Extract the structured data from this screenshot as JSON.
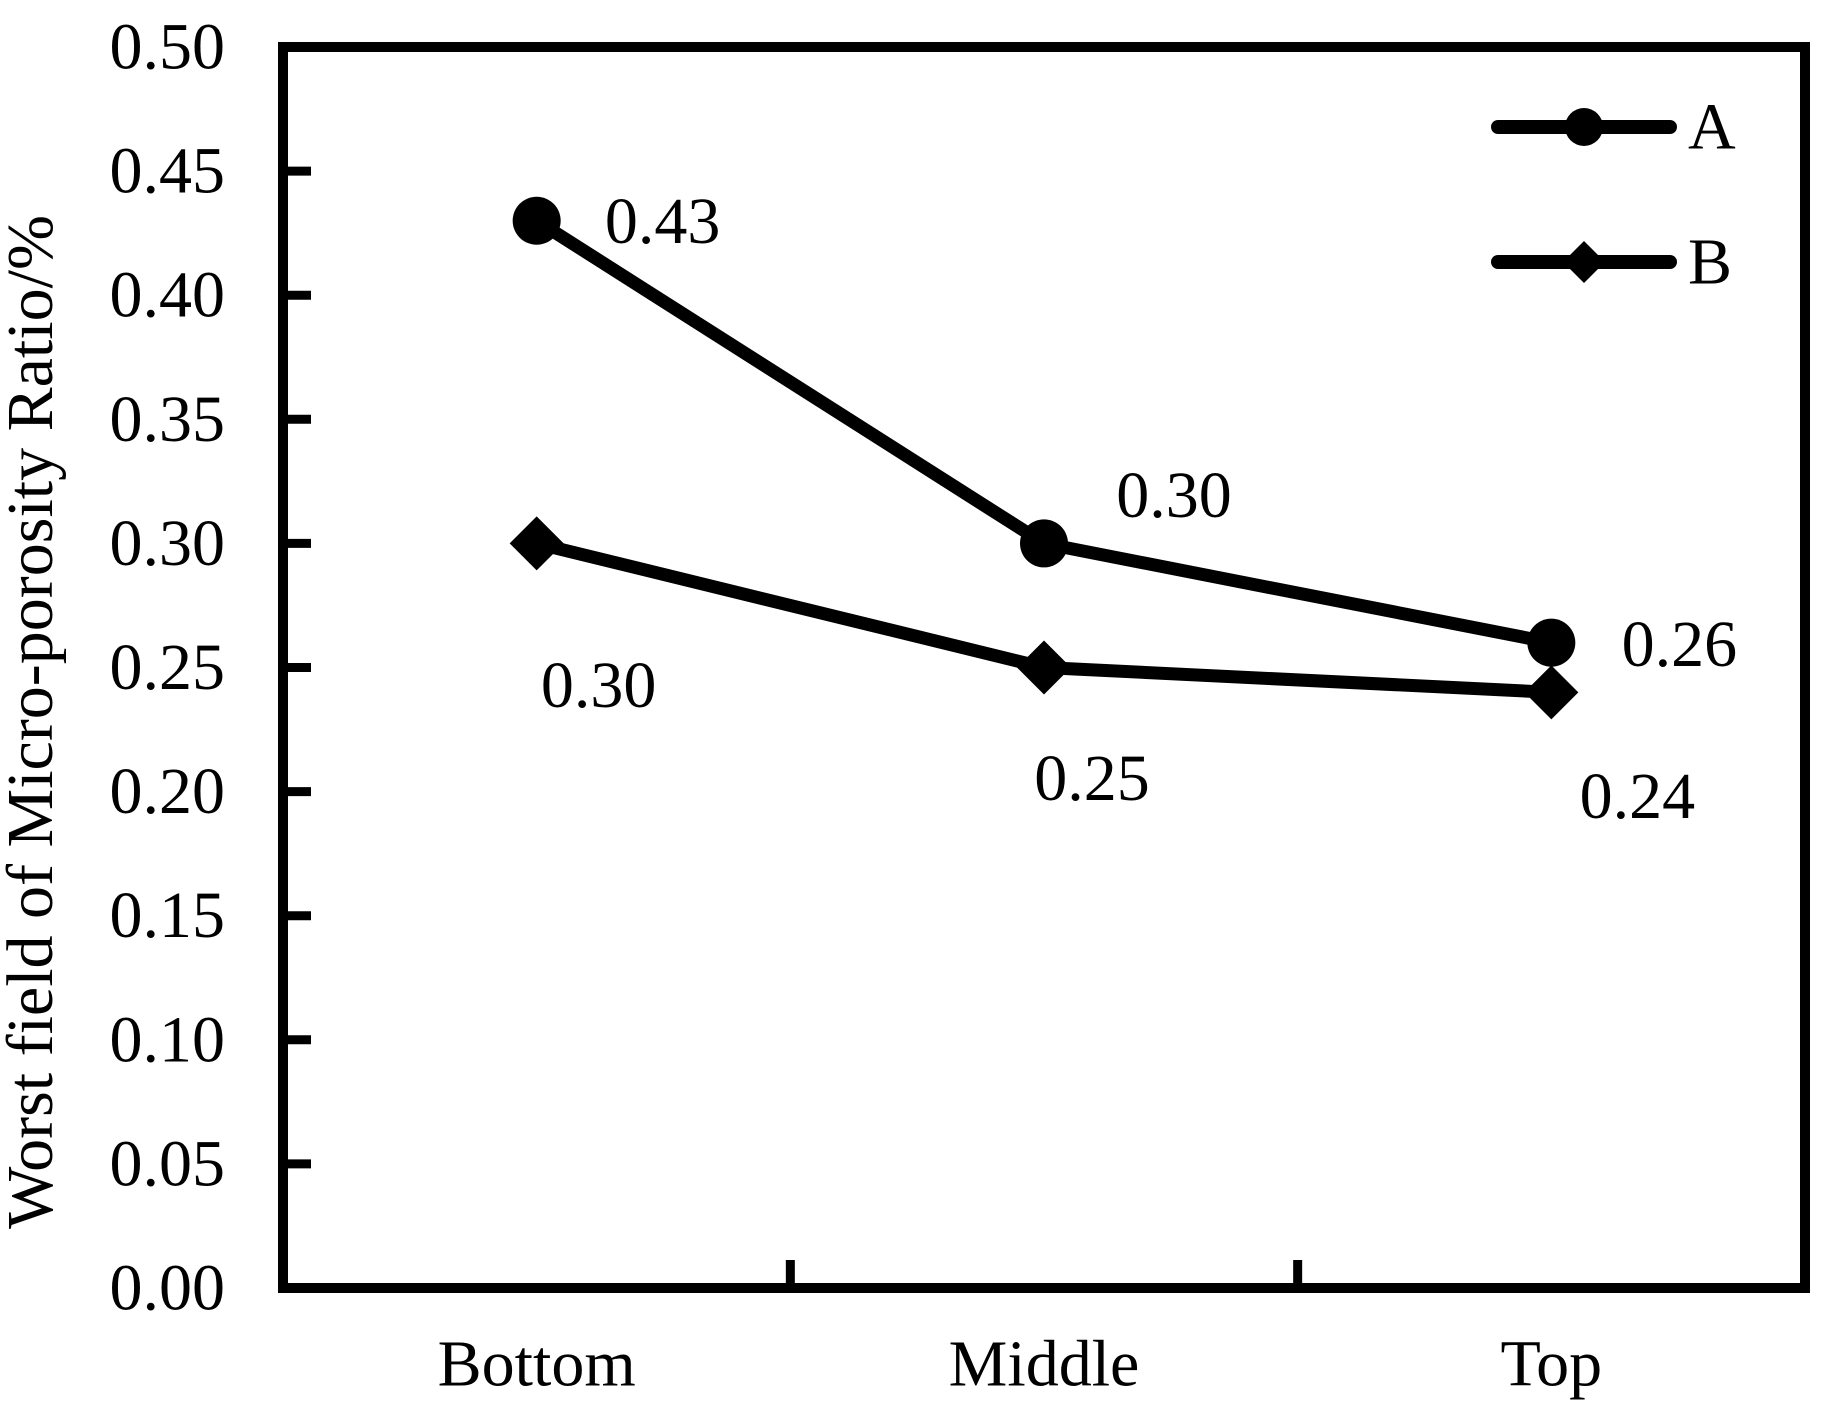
{
  "chart_data": {
    "type": "line",
    "title": "",
    "xlabel": "",
    "ylabel": "Worst field of Micro-porosity Ratio/%",
    "categories": [
      "Bottom",
      "Middle",
      "Top"
    ],
    "series": [
      {
        "name": "A",
        "marker": "circle",
        "values": [
          0.43,
          0.3,
          0.26
        ],
        "data_labels": [
          "0.43",
          "0.30",
          "0.26"
        ],
        "label_offsets": [
          [
            126,
            1
          ],
          [
            130,
            -48
          ],
          [
            128,
            2
          ]
        ]
      },
      {
        "name": "B",
        "marker": "diamond",
        "values": [
          0.3,
          0.25,
          0.24
        ],
        "data_labels": [
          "0.30",
          "0.25",
          "0.24"
        ],
        "label_offsets": [
          [
            62,
            142
          ],
          [
            48,
            111
          ],
          [
            86,
            104
          ]
        ]
      }
    ],
    "ylim": [
      0.0,
      0.5
    ],
    "ytick_step": 0.05,
    "ytick_labels": [
      "0.00",
      "0.05",
      "0.10",
      "0.15",
      "0.20",
      "0.25",
      "0.30",
      "0.35",
      "0.40",
      "0.45",
      "0.50"
    ],
    "legend": {
      "position": "inside-top-right",
      "entries": [
        "A",
        "B"
      ]
    },
    "grid": false,
    "colors": {
      "series": "#000000",
      "background": "#ffffff",
      "text": "#000000"
    }
  }
}
